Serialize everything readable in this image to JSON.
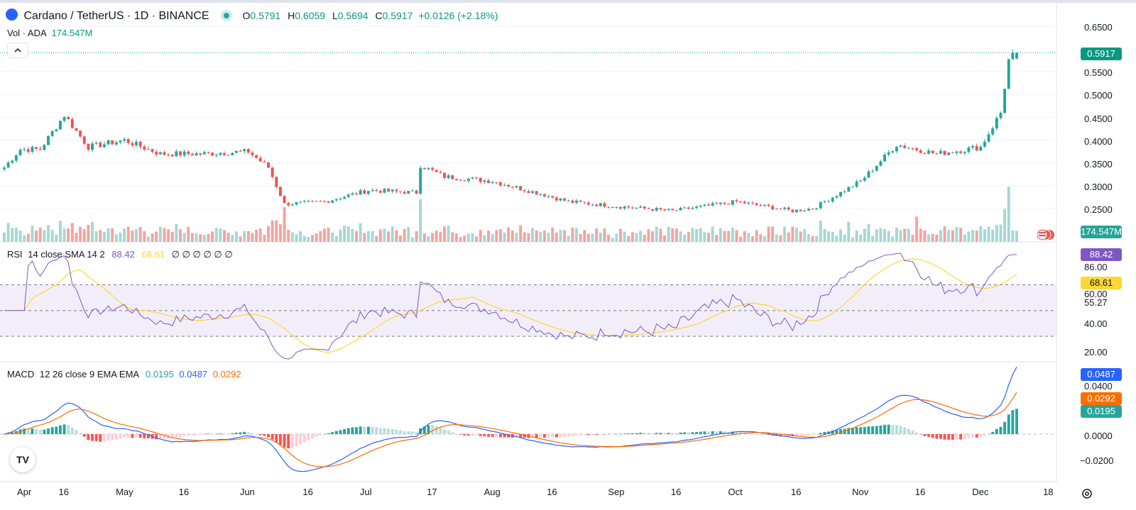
{
  "header": {
    "symbol": "Cardano / TetherUS · 1D · BINANCE",
    "o_label": "O",
    "o_value": "0.5791",
    "h_label": "H",
    "h_value": "0.6059",
    "l_label": "L",
    "l_value": "0.5694",
    "c_label": "C",
    "c_value": "0.5917",
    "change": "+0.0126 (+2.18%)",
    "vol_label": "Vol · ADA",
    "vol_value": "174.547M"
  },
  "rsi": {
    "label": "RSI",
    "params": "14 close SMA 14 2",
    "value": "88.42",
    "sma": "68.61",
    "extras": "∅ ∅ ∅ ∅ ∅ ∅"
  },
  "macd": {
    "label": "MACD",
    "params": "12 26 close 9 EMA EMA",
    "hist": "0.0195",
    "macd": "0.0487",
    "signal": "0.0292"
  },
  "price_axis": [
    "0.6500",
    "0.5500",
    "0.5000",
    "0.4500",
    "0.4000",
    "0.3500",
    "0.3000",
    "0.2500"
  ],
  "price_tag": "0.5917",
  "vol_tag": "174.547M",
  "rsi_axis": [
    "86.00",
    "60.00",
    "55.27",
    "40.00",
    "20.00"
  ],
  "rsi_tags": [
    "88.42",
    "68.61"
  ],
  "macd_axis": [
    "0.0400",
    "0.0000",
    "−0.0200"
  ],
  "macd_tags": [
    "0.0487",
    "0.0292",
    "0.0195"
  ],
  "time_axis": [
    "Apr",
    "16",
    "May",
    "16",
    "Jun",
    "16",
    "Jul",
    "17",
    "Aug",
    "16",
    "Sep",
    "16",
    "Oct",
    "16",
    "Nov",
    "16",
    "Dec",
    "18"
  ],
  "colors": {
    "up": "#26a69a",
    "down": "#ef5350",
    "rsi": "#7e57c2",
    "rsi_sma": "#fdd835",
    "macd": "#2962ff",
    "signal": "#ff6d00"
  },
  "icons": [
    "tradingview-logo-icon",
    "settings-gear-icon",
    "collapse-chevron-icon",
    "us-flag-icon"
  ],
  "chart_data": {
    "type": "candlestick",
    "x": [
      "Apr",
      "May",
      "Jun",
      "Jul",
      "Aug",
      "Sep",
      "Oct",
      "Nov",
      "Dec"
    ],
    "ylim": [
      0.22,
      0.66
    ],
    "anchors_close": [
      {
        "date": "Apr 1",
        "close": 0.34
      },
      {
        "date": "Apr 5",
        "close": 0.38
      },
      {
        "date": "Apr 10",
        "close": 0.38
      },
      {
        "date": "Apr 16",
        "close": 0.455
      },
      {
        "date": "Apr 22",
        "close": 0.385
      },
      {
        "date": "May 1",
        "close": 0.4
      },
      {
        "date": "May 10",
        "close": 0.37
      },
      {
        "date": "May 20",
        "close": 0.37
      },
      {
        "date": "Jun 1",
        "close": 0.375
      },
      {
        "date": "Jun 6",
        "close": 0.34
      },
      {
        "date": "Jun 10",
        "close": 0.26
      },
      {
        "date": "Jun 20",
        "close": 0.265
      },
      {
        "date": "Jul 1",
        "close": 0.29
      },
      {
        "date": "Jul 13",
        "close": 0.285
      },
      {
        "date": "Jul 14",
        "close": 0.345
      },
      {
        "date": "Jul 20",
        "close": 0.32
      },
      {
        "date": "Aug 1",
        "close": 0.31
      },
      {
        "date": "Aug 14",
        "close": 0.28
      },
      {
        "date": "Aug 20",
        "close": 0.265
      },
      {
        "date": "Sep 1",
        "close": 0.255
      },
      {
        "date": "Sep 15",
        "close": 0.245
      },
      {
        "date": "Oct 1",
        "close": 0.265
      },
      {
        "date": "Oct 15",
        "close": 0.245
      },
      {
        "date": "Oct 20",
        "close": 0.25
      },
      {
        "date": "Nov 1",
        "close": 0.31
      },
      {
        "date": "Nov 10",
        "close": 0.39
      },
      {
        "date": "Nov 20",
        "close": 0.37
      },
      {
        "date": "Dec 1",
        "close": 0.385
      },
      {
        "date": "Dec 6",
        "close": 0.46
      },
      {
        "date": "Dec 8",
        "close": 0.575
      },
      {
        "date": "Dec 10",
        "close": 0.5917
      }
    ]
  }
}
